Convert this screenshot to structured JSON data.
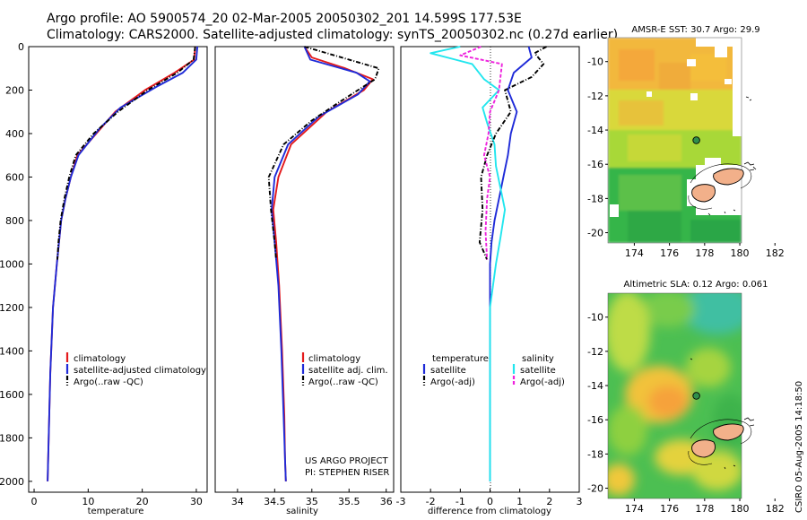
{
  "header": {
    "line1": "Argo profile: AO 5900574_20 02-Mar-2005 20050302_201 14.599S 177.53E",
    "line2": "Climatology: CARS2000. Satellite-adjusted climatology: synTS_20050302.nc (0.27d earlier)"
  },
  "colors": {
    "red": "#e41a1c",
    "blue": "#1f2bd8",
    "black": "#000000",
    "cyan": "#22e6ee",
    "magenta": "#ee22dd"
  },
  "chart_data": [
    {
      "type": "line",
      "xlabel": "temperature",
      "xlim": [
        -1,
        32
      ],
      "ylim": [
        2050,
        0
      ],
      "xticks": [
        0,
        10,
        20,
        30
      ],
      "yticks": [
        0,
        200,
        400,
        600,
        800,
        1000,
        1200,
        1400,
        1600,
        1800,
        2000
      ],
      "series": [
        {
          "name": "climatology",
          "color": "red",
          "dash": "solid",
          "x": [
            29.8,
            29.6,
            26.0,
            20.5,
            15.0,
            11.5,
            8.0,
            6.8,
            5.8,
            5.0,
            4.2,
            3.5,
            3.0,
            2.7,
            2.5
          ],
          "y": [
            0,
            60,
            120,
            200,
            300,
            400,
            500,
            600,
            700,
            800,
            1000,
            1200,
            1500,
            1800,
            2000
          ]
        },
        {
          "name": "satellite-adjusted climatology",
          "color": "blue",
          "dash": "solid",
          "x": [
            30.2,
            30.0,
            27.5,
            23.0,
            16.0,
            12.0,
            8.2,
            6.8,
            5.8,
            5.0,
            4.2,
            3.5,
            3.0,
            2.7,
            2.5
          ],
          "y": [
            0,
            60,
            120,
            180,
            280,
            380,
            500,
            600,
            700,
            800,
            1000,
            1200,
            1500,
            1800,
            2000
          ]
        },
        {
          "name": "Argo(..raw -QC)",
          "color": "black",
          "dash": "dashdot",
          "x": [
            29.8,
            29.5,
            26.5,
            21.0,
            15.5,
            11.0,
            7.7,
            6.5,
            5.6,
            4.9,
            4.5,
            4.3
          ],
          "y": [
            0,
            60,
            120,
            200,
            300,
            400,
            500,
            600,
            700,
            800,
            900,
            980
          ]
        }
      ],
      "legend": {
        "position": "lower-center",
        "entries": [
          "climatology",
          "satellite-adjusted climatology",
          "Argo(..raw -QC)"
        ]
      }
    },
    {
      "type": "line",
      "xlabel": "salinity",
      "xlim": [
        33.7,
        36.1
      ],
      "ylim": [
        2050,
        0
      ],
      "xticks": [
        34,
        34.5,
        35,
        35.5,
        36
      ],
      "series": [
        {
          "name": "climatology",
          "color": "red",
          "dash": "solid",
          "x": [
            34.9,
            35.0,
            35.45,
            35.82,
            35.7,
            35.2,
            34.72,
            34.55,
            34.48,
            34.52,
            34.56,
            34.6,
            34.63,
            34.64,
            34.65
          ],
          "y": [
            0,
            50,
            100,
            150,
            200,
            300,
            450,
            600,
            750,
            900,
            1100,
            1400,
            1700,
            1900,
            2000
          ]
        },
        {
          "name": "satellite adj. clim.",
          "color": "blue",
          "dash": "solid",
          "x": [
            34.9,
            34.98,
            35.6,
            35.78,
            35.62,
            35.1,
            34.68,
            34.5,
            34.46,
            34.5,
            34.55,
            34.59,
            34.62,
            34.64,
            34.65
          ],
          "y": [
            0,
            60,
            120,
            160,
            220,
            320,
            450,
            600,
            750,
            900,
            1100,
            1400,
            1700,
            1900,
            2000
          ]
        },
        {
          "name": "Argo(..raw -QC)",
          "color": "black",
          "dash": "dashdot",
          "x": [
            34.9,
            35.9,
            35.85,
            35.62,
            35.35,
            35.0,
            34.62,
            34.42,
            34.45,
            34.5,
            34.52
          ],
          "y": [
            0,
            100,
            150,
            200,
            260,
            340,
            450,
            600,
            750,
            900,
            980
          ]
        }
      ],
      "legend": {
        "position": "lower-center",
        "entries": [
          "climatology",
          "satellite adj. clim.",
          "Argo(..raw -QC)"
        ]
      },
      "annotation": {
        "line1": "US ARGO PROJECT",
        "line2": "PI: STEPHEN RISER"
      }
    },
    {
      "type": "line",
      "xlabel": "difference from climatology",
      "xlim": [
        -3,
        3
      ],
      "ylim": [
        2050,
        0
      ],
      "xticks": [
        -3,
        -2,
        -1,
        0,
        1,
        2,
        3
      ],
      "series": [
        {
          "name": "temperature satellite",
          "color": "blue",
          "dash": "solid",
          "x": [
            1.3,
            1.4,
            0.8,
            0.6,
            0.9,
            0.7,
            0.6,
            0.45,
            0.3,
            0.15,
            0.05,
            0.0,
            0.0,
            0.0,
            0.0
          ],
          "y": [
            0,
            50,
            120,
            200,
            300,
            400,
            500,
            600,
            700,
            800,
            900,
            1000,
            1200,
            1600,
            2000
          ]
        },
        {
          "name": "salinity satellite",
          "color": "cyan",
          "dash": "solid",
          "x": [
            -1.0,
            -2.0,
            -0.6,
            -0.2,
            0.3,
            -0.25,
            -0.1,
            0.15,
            0.2,
            0.5,
            0.35,
            0.2,
            0.0,
            0.0,
            0.0
          ],
          "y": [
            0,
            30,
            80,
            150,
            200,
            280,
            350,
            450,
            550,
            750,
            880,
            1000,
            1200,
            1600,
            2000
          ]
        },
        {
          "name": "temperature Argo(-adj)",
          "color": "black",
          "dash": "dashdot",
          "x": [
            1.9,
            1.5,
            1.8,
            1.4,
            0.5,
            0.7,
            0.2,
            -0.1,
            -0.3,
            -0.25,
            -0.35,
            -0.1
          ],
          "y": [
            0,
            30,
            80,
            140,
            200,
            300,
            400,
            500,
            600,
            750,
            900,
            980
          ]
        },
        {
          "name": "salinity Argo(-adj)",
          "color": "magenta",
          "dash": "dashed",
          "x": [
            -0.3,
            -1.0,
            0.4,
            0.3,
            0.0,
            -0.05,
            -0.2,
            0.0,
            -0.1,
            -0.15,
            -0.1
          ],
          "y": [
            0,
            40,
            80,
            200,
            300,
            400,
            500,
            600,
            700,
            850,
            980
          ]
        }
      ],
      "legend": {
        "position": "lower-center",
        "left_heading": "temperature",
        "right_heading": "salinity",
        "left_entries": [
          "satellite",
          "Argo(-adj)"
        ],
        "right_entries": [
          "satellite",
          "Argo(-adj)"
        ]
      }
    },
    {
      "type": "heatmap",
      "title": "AMSR-E SST: 30.7 Argo: 29.9",
      "x_range": [
        172.5,
        183
      ],
      "y_range": [
        -20.6,
        -8.8
      ],
      "xticks": [
        174,
        176,
        178,
        180,
        182
      ],
      "yticks": [
        -10,
        -12,
        -14,
        -16,
        -18,
        -20
      ],
      "argo_position": {
        "lon": 177.53,
        "lat": -14.599
      }
    },
    {
      "type": "heatmap",
      "title": "Altimetric SLA: 0.12 Argo: 0.061",
      "x_range": [
        172.5,
        183
      ],
      "y_range": [
        -20.6,
        -8.8
      ],
      "xticks": [
        174,
        176,
        178,
        180,
        182
      ],
      "yticks": [
        -10,
        -12,
        -14,
        -16,
        -18,
        -20
      ],
      "argo_position": {
        "lon": 177.53,
        "lat": -14.599
      }
    }
  ],
  "footer": {
    "credit": "CSIRO 05-Aug-2005 14:18:50"
  }
}
